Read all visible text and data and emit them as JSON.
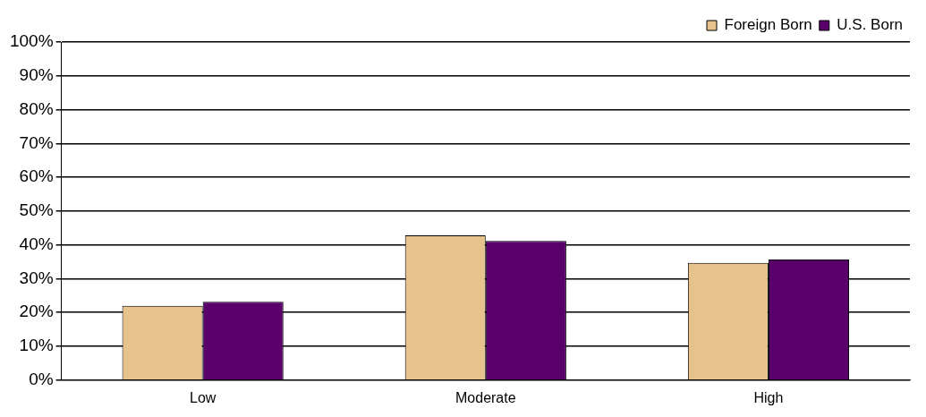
{
  "chart_data": {
    "type": "bar",
    "categories": [
      "Low",
      "Moderate",
      "High"
    ],
    "series": [
      {
        "name": "Foreign Born",
        "color": "#e6c28d",
        "values": [
          22,
          42.8,
          34.7
        ]
      },
      {
        "name": "U.S. Born",
        "color": "#5a006b",
        "values": [
          23.2,
          41.2,
          35.7
        ]
      }
    ],
    "ylim": [
      0,
      100
    ],
    "yticks": [
      {
        "value": 0,
        "label": "0%"
      },
      {
        "value": 10,
        "label": "10%"
      },
      {
        "value": 20,
        "label": "20%"
      },
      {
        "value": 30,
        "label": "30%"
      },
      {
        "value": 40,
        "label": "40%"
      },
      {
        "value": 50,
        "label": "50%"
      },
      {
        "value": 60,
        "label": "60%"
      },
      {
        "value": 70,
        "label": "70%"
      },
      {
        "value": 80,
        "label": "80%"
      },
      {
        "value": 90,
        "label": "90%"
      },
      {
        "value": 100,
        "label": "100%"
      }
    ],
    "grid": "y",
    "legend": "top right"
  }
}
